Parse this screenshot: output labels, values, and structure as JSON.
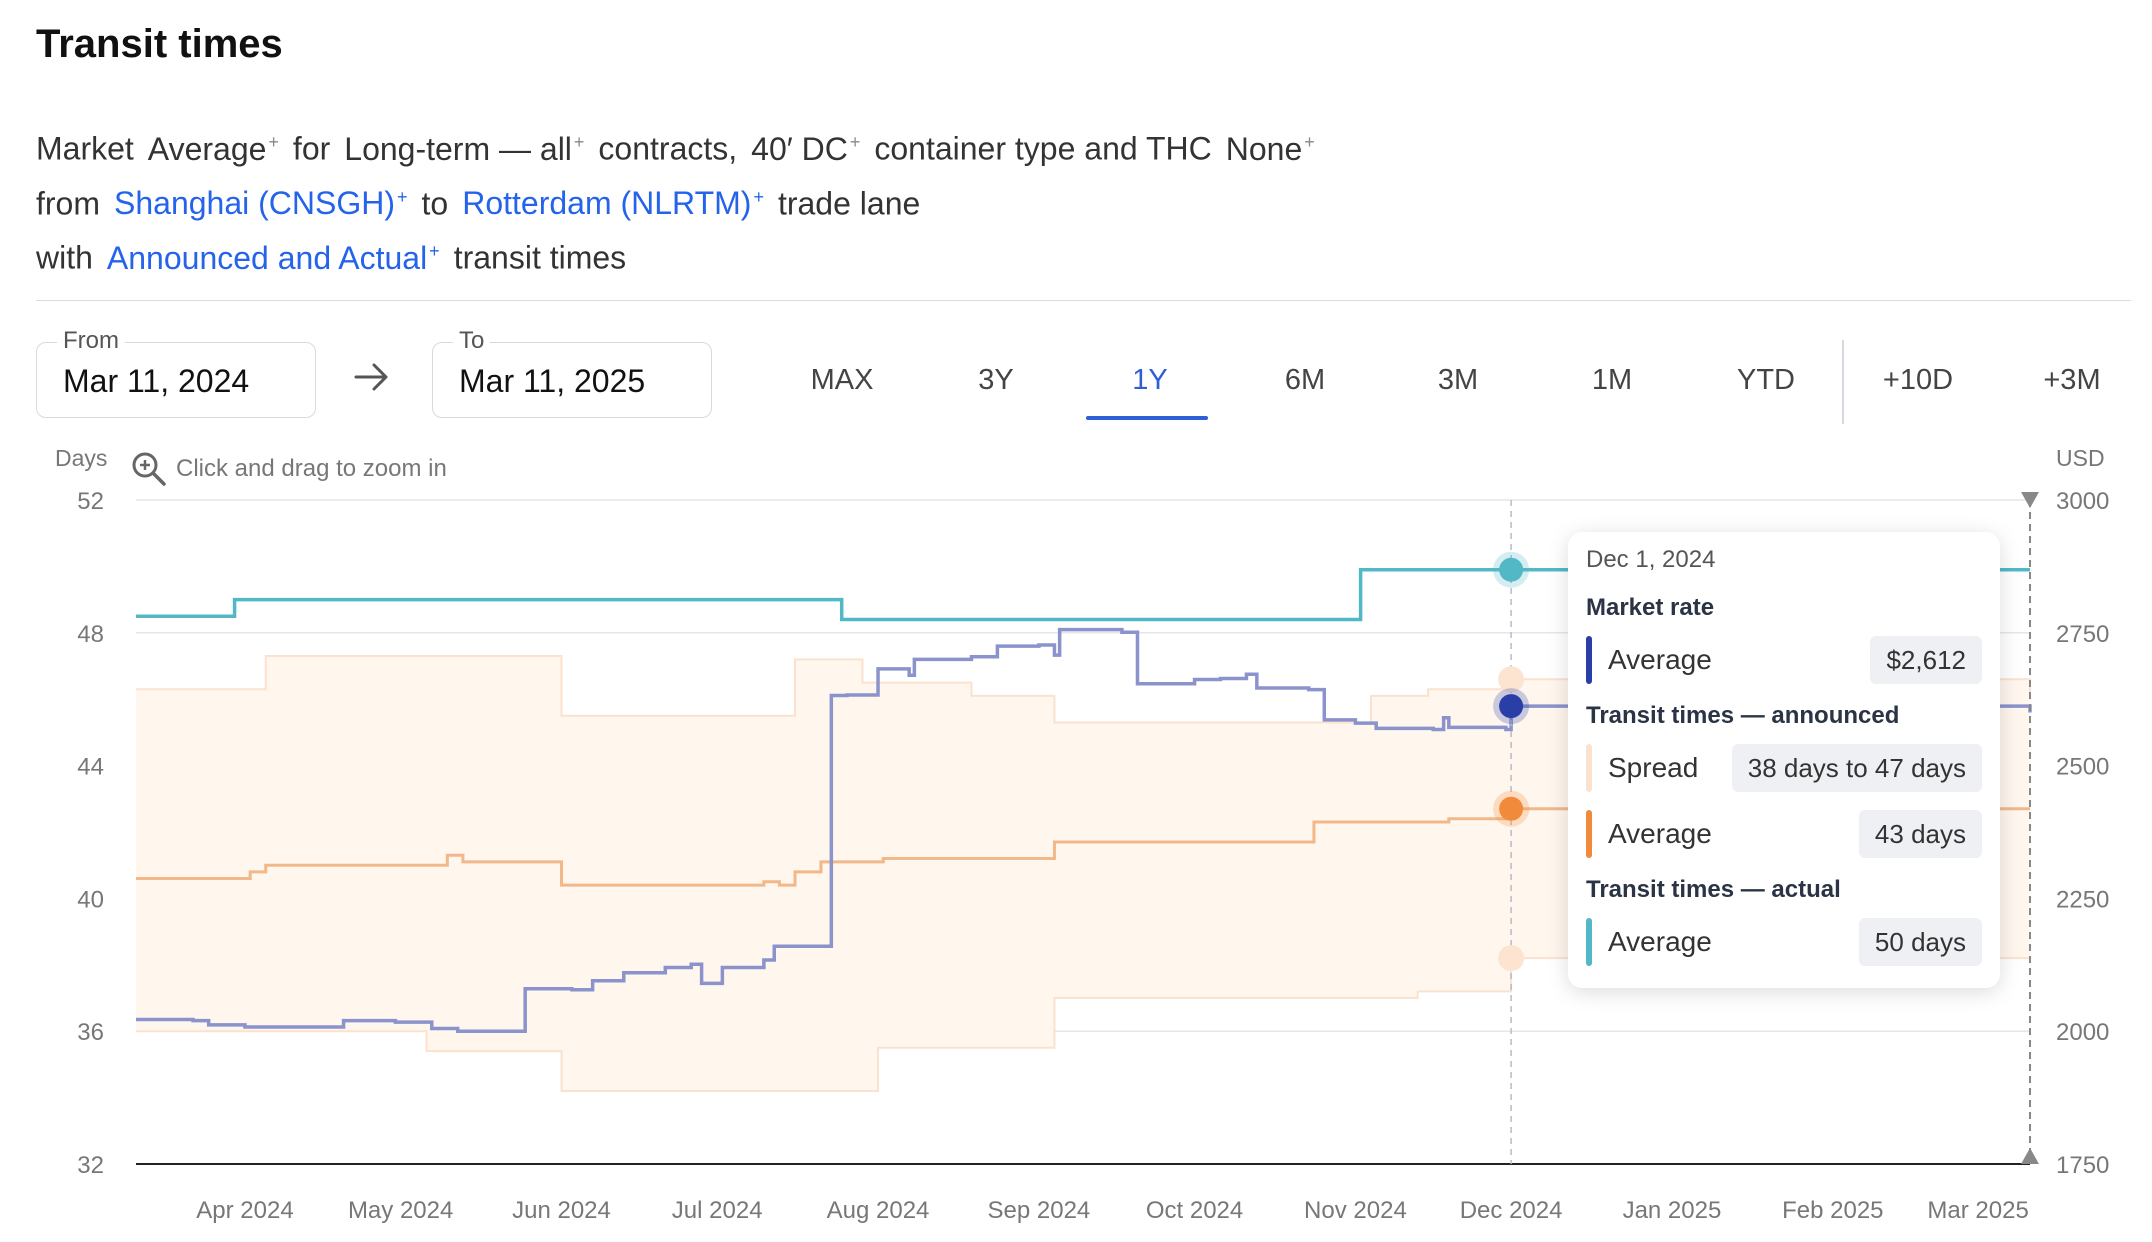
{
  "title": "Transit times",
  "description": {
    "line1": [
      {
        "t": "Market"
      },
      {
        "t": "Average",
        "sup": true
      },
      {
        "t": "for"
      },
      {
        "t": "Long-term — all",
        "sup": true
      },
      {
        "t": "contracts,"
      },
      {
        "t": "40′ DC",
        "sup": true
      },
      {
        "t": "container type and THC"
      },
      {
        "t": "None",
        "sup": true
      }
    ],
    "line2": [
      {
        "t": "from"
      },
      {
        "t": "Shanghai (CNSGH)",
        "sup": true,
        "link": true
      },
      {
        "t": "to"
      },
      {
        "t": "Rotterdam (NLRTM)",
        "sup": true,
        "link": true
      },
      {
        "t": "trade lane"
      }
    ],
    "line3": [
      {
        "t": "with"
      },
      {
        "t": "Announced and Actual",
        "sup": true,
        "link": true
      },
      {
        "t": "transit times"
      }
    ],
    "sup_mark": "+"
  },
  "date_range": {
    "from_label": "From",
    "from_value": "Mar 11, 2024",
    "to_label": "To",
    "to_value": "Mar 11, 2025"
  },
  "ranges": [
    "MAX",
    "3Y",
    "1Y",
    "6M",
    "3M",
    "1M",
    "YTD",
    "+10D",
    "+3M"
  ],
  "active_range": "1Y",
  "axis": {
    "left_unit": "Days",
    "right_unit": "USD",
    "zoom_hint": "Click and drag to zoom in"
  },
  "colors": {
    "market_rate": "#8b93cc",
    "market_rate_dot": "#2a3ea8",
    "announced_avg": "#f2b88a",
    "announced_dot": "#f28a3c",
    "spread_fill": "#fff6ee",
    "spread_edge": "#fbe2cf",
    "actual": "#52b8c6",
    "grid": "#e3e6ea"
  },
  "chart_data": {
    "type": "line",
    "x_ticks": [
      "Apr 2024",
      "May 2024",
      "Jun 2024",
      "Jul 2024",
      "Aug 2024",
      "Sep 2024",
      "Oct 2024",
      "Nov 2024",
      "Dec 2024",
      "Jan 2025",
      "Feb 2025",
      "Mar 2025"
    ],
    "x_range": [
      "2024-03-11",
      "2025-03-11"
    ],
    "y_left": {
      "label": "Days",
      "ticks": [
        32,
        36,
        40,
        44,
        48,
        52
      ],
      "range": [
        32,
        52
      ]
    },
    "y_right": {
      "label": "USD",
      "ticks": [
        1750,
        2000,
        2250,
        2500,
        2750,
        3000
      ],
      "range": [
        1750,
        3000
      ]
    },
    "hover_date": "2024-12-01",
    "series": [
      {
        "name": "Market rate — Average",
        "axis": "right",
        "points": [
          [
            "2024-03-11",
            2022
          ],
          [
            "2024-03-22",
            2020
          ],
          [
            "2024-03-25",
            2012
          ],
          [
            "2024-04-01",
            2008
          ],
          [
            "2024-04-20",
            2020
          ],
          [
            "2024-04-30",
            2017
          ],
          [
            "2024-05-07",
            2005
          ],
          [
            "2024-05-12",
            2000
          ],
          [
            "2024-05-22",
            2000
          ],
          [
            "2024-05-25",
            2080
          ],
          [
            "2024-06-03",
            2078
          ],
          [
            "2024-06-07",
            2095
          ],
          [
            "2024-06-13",
            2110
          ],
          [
            "2024-06-21",
            2120
          ],
          [
            "2024-06-26",
            2126
          ],
          [
            "2024-06-28",
            2090
          ],
          [
            "2024-07-02",
            2120
          ],
          [
            "2024-07-10",
            2134
          ],
          [
            "2024-07-12",
            2160
          ],
          [
            "2024-07-23",
            2632
          ],
          [
            "2024-07-26",
            2633
          ],
          [
            "2024-08-01",
            2682
          ],
          [
            "2024-08-07",
            2670
          ],
          [
            "2024-08-08",
            2700
          ],
          [
            "2024-08-19",
            2705
          ],
          [
            "2024-08-24",
            2725
          ],
          [
            "2024-09-01",
            2727
          ],
          [
            "2024-09-04",
            2708
          ],
          [
            "2024-09-05",
            2756
          ],
          [
            "2024-09-17",
            2751
          ],
          [
            "2024-09-20",
            2654
          ],
          [
            "2024-10-01",
            2662
          ],
          [
            "2024-10-06",
            2664
          ],
          [
            "2024-10-11",
            2672
          ],
          [
            "2024-10-13",
            2646
          ],
          [
            "2024-10-23",
            2643
          ],
          [
            "2024-10-26",
            2586
          ],
          [
            "2024-11-01",
            2580
          ],
          [
            "2024-11-05",
            2570
          ],
          [
            "2024-11-16",
            2568
          ],
          [
            "2024-11-18",
            2590
          ],
          [
            "2024-11-19",
            2572
          ],
          [
            "2024-11-30",
            2568
          ],
          [
            "2024-12-01",
            2612
          ],
          [
            "2025-03-11",
            2600
          ]
        ]
      },
      {
        "name": "Transit times — actual — Average",
        "axis": "left",
        "points": [
          [
            "2024-03-11",
            48.5
          ],
          [
            "2024-03-30",
            49.0
          ],
          [
            "2024-07-25",
            48.4
          ],
          [
            "2024-11-02",
            49.9
          ],
          [
            "2025-03-11",
            49.9
          ]
        ]
      },
      {
        "name": "Transit times — announced — Average",
        "axis": "left",
        "points": [
          [
            "2024-03-11",
            40.6
          ],
          [
            "2024-04-02",
            40.8
          ],
          [
            "2024-04-05",
            41.0
          ],
          [
            "2024-05-10",
            41.3
          ],
          [
            "2024-05-13",
            41.1
          ],
          [
            "2024-06-01",
            40.4
          ],
          [
            "2024-07-10",
            40.5
          ],
          [
            "2024-07-13",
            40.4
          ],
          [
            "2024-07-16",
            40.8
          ],
          [
            "2024-07-21",
            41.1
          ],
          [
            "2024-08-02",
            41.2
          ],
          [
            "2024-08-13",
            41.2
          ],
          [
            "2024-09-02",
            41.2
          ],
          [
            "2024-09-04",
            41.7
          ],
          [
            "2024-10-24",
            42.3
          ],
          [
            "2024-11-01",
            42.3
          ],
          [
            "2024-11-15",
            42.3
          ],
          [
            "2024-11-19",
            42.4
          ],
          [
            "2024-12-01",
            42.7
          ],
          [
            "2025-03-11",
            42.7
          ]
        ]
      },
      {
        "name": "Transit times — announced — Spread",
        "axis": "left",
        "type": "band",
        "low": [
          [
            "2024-03-11",
            36.0
          ],
          [
            "2024-05-06",
            35.4
          ],
          [
            "2024-06-01",
            34.2
          ],
          [
            "2024-07-31",
            34.2
          ],
          [
            "2024-08-01",
            35.5
          ],
          [
            "2024-09-04",
            37.0
          ],
          [
            "2024-11-13",
            37.2
          ],
          [
            "2024-11-26",
            37.2
          ],
          [
            "2024-12-01",
            38.2
          ],
          [
            "2025-03-11",
            38.2
          ]
        ],
        "high": [
          [
            "2024-03-11",
            46.3
          ],
          [
            "2024-04-05",
            47.3
          ],
          [
            "2024-05-12",
            47.3
          ],
          [
            "2024-06-01",
            45.5
          ],
          [
            "2024-07-16",
            47.2
          ],
          [
            "2024-07-29",
            46.5
          ],
          [
            "2024-08-19",
            46.1
          ],
          [
            "2024-09-04",
            45.3
          ],
          [
            "2024-10-05",
            45.3
          ],
          [
            "2024-11-04",
            46.1
          ],
          [
            "2024-11-15",
            46.3
          ],
          [
            "2024-12-01",
            46.6
          ],
          [
            "2025-03-11",
            46.0
          ]
        ]
      }
    ],
    "tooltip": {
      "date": "Dec 1, 2024",
      "sections": [
        {
          "title": "Market rate",
          "rows": [
            {
              "name": "Average",
              "value": "$2,612",
              "color": "#2a3ea8"
            }
          ]
        },
        {
          "title": "Transit times — announced",
          "rows": [
            {
              "name": "Spread",
              "value": "38 days to 47 days",
              "color": "#fbe2cf"
            },
            {
              "name": "Average",
              "value": "43 days",
              "color": "#f28a3c"
            }
          ]
        },
        {
          "title": "Transit times — actual",
          "rows": [
            {
              "name": "Average",
              "value": "50 days",
              "color": "#52b8c6"
            }
          ]
        }
      ]
    }
  }
}
